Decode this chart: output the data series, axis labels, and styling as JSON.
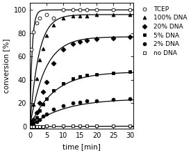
{
  "series": [
    {
      "label": "TCEP",
      "marker": "o",
      "mfc": "white",
      "mec": "black",
      "color": "black",
      "Amax": 100,
      "k": 1.5,
      "points_x": [
        0.5,
        1,
        2,
        3,
        5,
        7,
        10,
        13,
        15,
        17,
        20,
        25,
        30
      ],
      "points_y": [
        66,
        81,
        89,
        93,
        96,
        93,
        100,
        100,
        100,
        100,
        100,
        100,
        100
      ]
    },
    {
      "label": "100% DNA",
      "marker": "^",
      "mfc": "black",
      "mec": "black",
      "color": "black",
      "Amax": 96,
      "k": 0.38,
      "points_x": [
        0.5,
        1,
        2,
        3,
        4,
        5,
        7,
        10,
        13,
        15,
        17,
        20,
        25,
        30
      ],
      "points_y": [
        4,
        19,
        41,
        57,
        67,
        78,
        87,
        93,
        95,
        95,
        95,
        96,
        96,
        96
      ]
    },
    {
      "label": "20% DNA",
      "marker": "D",
      "mfc": "black",
      "mec": "black",
      "color": "black",
      "Amax": 77,
      "k": 0.22,
      "points_x": [
        0.5,
        1,
        2,
        3,
        4,
        5,
        7,
        10,
        13,
        15,
        17,
        20,
        25,
        30
      ],
      "points_y": [
        3,
        6,
        12,
        20,
        30,
        38,
        54,
        66,
        71,
        73,
        74,
        75,
        76,
        77
      ]
    },
    {
      "label": "5% DNA",
      "marker": "s",
      "mfc": "black",
      "mec": "black",
      "color": "black",
      "Amax": 47,
      "k": 0.14,
      "points_x": [
        0.5,
        1,
        2,
        3,
        4,
        5,
        7,
        10,
        13,
        15,
        17,
        20,
        25,
        30
      ],
      "points_y": [
        1,
        3,
        8,
        14,
        19,
        24,
        31,
        37,
        41,
        43,
        44,
        45,
        46,
        47
      ]
    },
    {
      "label": "2% DNA",
      "marker": "o",
      "mfc": "black",
      "mec": "black",
      "color": "black",
      "Amax": 24,
      "k": 0.1,
      "points_x": [
        0.5,
        1,
        2,
        3,
        4,
        5,
        7,
        10,
        13,
        15,
        17,
        20,
        25,
        30
      ],
      "points_y": [
        0.5,
        1.5,
        4,
        6,
        9,
        11,
        15,
        18,
        20,
        21,
        22,
        22,
        23,
        24
      ]
    },
    {
      "label": "no DNA",
      "marker": "s",
      "mfc": "white",
      "mec": "black",
      "color": "black",
      "Amax": 0.8,
      "k": 0.02,
      "points_x": [
        0.5,
        1,
        2,
        3,
        4,
        5,
        7,
        10,
        13,
        15,
        17,
        20,
        25,
        30
      ],
      "points_y": [
        0.1,
        0.2,
        0.3,
        0.3,
        0.3,
        0.4,
        0.4,
        0.4,
        0.4,
        0.4,
        0.4,
        0.4,
        0.4,
        0.4
      ]
    }
  ],
  "xlim": [
    0,
    31
  ],
  "ylim": [
    -2,
    106
  ],
  "xlabel": "time [min]",
  "ylabel": "conversion [%]",
  "xticks": [
    0,
    5,
    10,
    15,
    20,
    25,
    30
  ],
  "yticks": [
    0,
    20,
    40,
    60,
    80,
    100
  ],
  "marker_size": 3.5,
  "line_width": 0.9,
  "background_color": "#ffffff",
  "legend_labels": [
    "TCEP",
    "100% DNA",
    "20% DNA",
    "5% DNA",
    "2% DNA",
    "no DNA"
  ],
  "legend_markers": [
    "o",
    "^",
    "D",
    "s",
    "o",
    "s"
  ],
  "legend_mfc": [
    "white",
    "black",
    "black",
    "black",
    "black",
    "white"
  ]
}
